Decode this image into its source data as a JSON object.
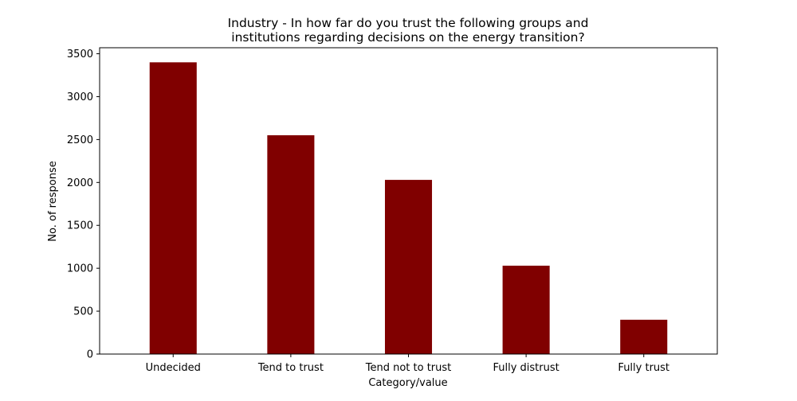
{
  "chart_data": {
    "type": "bar",
    "title_lines": [
      "Industry - In how far do you trust the following groups and",
      "institutions regarding decisions on the energy transition?"
    ],
    "xlabel": "Category/value",
    "ylabel": "No. of response",
    "categories": [
      "Undecided",
      "Tend to trust",
      "Tend not to trust",
      "Fully distrust",
      "Fully trust"
    ],
    "values": [
      3400,
      2550,
      2030,
      1030,
      400
    ],
    "ylim": [
      0,
      3570
    ],
    "yticks": [
      0,
      500,
      1000,
      1500,
      2000,
      2500,
      3000,
      3500
    ],
    "bar_color": "#800000",
    "grid": false,
    "legend": "none"
  }
}
